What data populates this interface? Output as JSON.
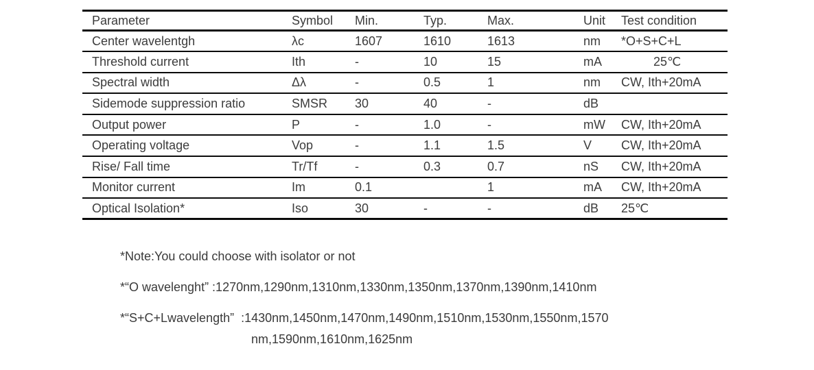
{
  "colors": {
    "background": "#ffffff",
    "text": "#3c3c3c",
    "table_line": "#0a0a0a"
  },
  "spec_table": {
    "columns": [
      "Parameter",
      "Symbol",
      "Min.",
      "Typ.",
      "Max.",
      "Unit",
      "Test condition"
    ],
    "rows": [
      {
        "parameter": "Center wavelentgh",
        "symbol": "λc",
        "min": "1607",
        "typ": "1610",
        "max": "1613",
        "unit": "nm",
        "test_condition": "*O+S+C+L"
      },
      {
        "parameter": "Threshold current",
        "symbol": "Ith",
        "min": "-",
        "typ": "10",
        "max": "15",
        "unit": "mA",
        "test_condition": "25℃"
      },
      {
        "parameter": "Spectral width",
        "symbol": "Δλ",
        "min": "-",
        "typ": "0.5",
        "max": "1",
        "unit": "nm",
        "test_condition": "CW, Ith+20mA"
      },
      {
        "parameter": "Sidemode suppression ratio",
        "symbol": "SMSR",
        "min": "30",
        "typ": "40",
        "max": "-",
        "unit": "dB",
        "test_condition": ""
      },
      {
        "parameter": "Output power",
        "symbol": "P",
        "min": "-",
        "typ": "1.0",
        "max": "-",
        "unit": "mW",
        "test_condition": "CW, Ith+20mA"
      },
      {
        "parameter": "Operating voltage",
        "symbol": "Vop",
        "min": "-",
        "typ": "1.1",
        "max": "1.5",
        "unit": "V",
        "test_condition": "CW, Ith+20mA"
      },
      {
        "parameter": "Rise/ Fall time",
        "symbol": "Tr/Tf",
        "min": "-",
        "typ": "0.3",
        "max": "0.7",
        "unit": "nS",
        "test_condition": "CW, Ith+20mA"
      },
      {
        "parameter": "Monitor current",
        "symbol": "Im",
        "min": "0.1",
        "typ": "",
        "max": "1",
        "unit": "mA",
        "test_condition": "CW, Ith+20mA"
      },
      {
        "parameter": "Optical Isolation*",
        "symbol": "Iso",
        "min": "30",
        "typ": "-",
        "max": "-",
        "unit": "dB",
        "test_condition": "25℃"
      }
    ]
  },
  "notes": [
    "*Note:You could choose with isolator or not",
    "*“O wavelenght” :1270nm,1290nm,1310nm,1330nm,1350nm,1370nm,1390nm,1410nm",
    "*“S+C+Lwavelength”  :1430nm,1450nm,1470nm,1490nm,1510nm,1530nm,1550nm,1570",
    "nm,1590nm,1610nm,1625nm"
  ]
}
